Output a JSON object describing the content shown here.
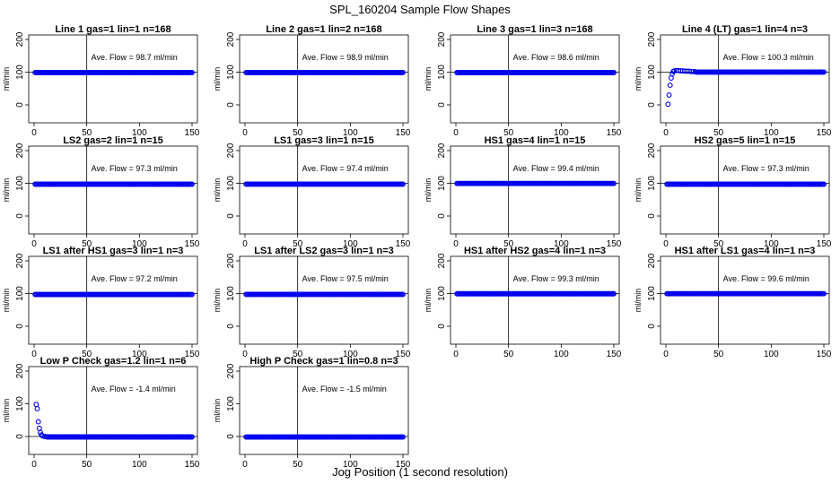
{
  "figure": {
    "title": "SPL_160204  Sample Flow Shapes",
    "xlabel": "Jog Position (1 second resolution)"
  },
  "colors": {
    "points": "#0000ee",
    "axes": "#000000",
    "background": "#ffffff"
  },
  "chart_data": [
    {
      "type": "scatter",
      "title": "Line 1 gas=1 lin=1 n=168",
      "ylabel": "ml/min",
      "annotation": "Ave. Flow =  98.7  ml/min",
      "xlim": [
        0,
        150
      ],
      "ylim": [
        0,
        200
      ],
      "xticks": [
        0,
        50,
        100,
        150
      ],
      "yticks": [
        0,
        100,
        200
      ],
      "vline": 50,
      "hline": 100,
      "series": [
        {
          "points": [
            [
              1,
              98.7
            ],
            [
              150,
              98.7
            ]
          ],
          "shape": "flat",
          "level": 98.7
        }
      ]
    },
    {
      "type": "scatter",
      "title": "Line 2 gas=1 lin=2 n=168",
      "ylabel": "ml/min",
      "annotation": "Ave. Flow =  98.9  ml/min",
      "xlim": [
        0,
        150
      ],
      "ylim": [
        0,
        200
      ],
      "xticks": [
        0,
        50,
        100,
        150
      ],
      "yticks": [
        0,
        100,
        200
      ],
      "vline": 50,
      "hline": 100,
      "series": [
        {
          "points": [
            [
              1,
              98.9
            ],
            [
              150,
              98.9
            ]
          ],
          "shape": "flat",
          "level": 98.9
        }
      ]
    },
    {
      "type": "scatter",
      "title": "Line 3 gas=1 lin=3 n=168",
      "ylabel": "ml/min",
      "annotation": "Ave. Flow =  98.6  ml/min",
      "xlim": [
        0,
        150
      ],
      "ylim": [
        0,
        200
      ],
      "xticks": [
        0,
        50,
        100,
        150
      ],
      "yticks": [
        0,
        100,
        200
      ],
      "vline": 50,
      "hline": 100,
      "series": [
        {
          "points": [
            [
              1,
              98.6
            ],
            [
              150,
              98.6
            ]
          ],
          "shape": "flat",
          "level": 98.6
        }
      ]
    },
    {
      "type": "scatter",
      "title": "Line 4 (LT) gas=1 lin=4 n=3",
      "ylabel": "ml/min",
      "annotation": "Ave. Flow =  100.3  ml/min",
      "xlim": [
        0,
        150
      ],
      "ylim": [
        0,
        200
      ],
      "xticks": [
        0,
        50,
        100,
        150
      ],
      "yticks": [
        0,
        100,
        200
      ],
      "vline": 50,
      "hline": 100,
      "series": [
        {
          "points": [
            [
              2,
              2
            ],
            [
              3,
              30
            ],
            [
              4,
              60
            ],
            [
              5,
              82
            ],
            [
              6,
              95
            ],
            [
              7,
              102
            ],
            [
              8,
              104
            ],
            [
              10,
              105
            ],
            [
              12,
              105
            ],
            [
              14,
              104
            ],
            [
              16,
              104
            ],
            [
              18,
              103
            ],
            [
              20,
              103
            ],
            [
              22,
              103
            ],
            [
              24,
              102
            ],
            [
              26,
              102
            ],
            [
              28,
              101
            ],
            [
              150,
              100.3
            ]
          ],
          "shape": "rise",
          "level": 100.3
        }
      ]
    },
    {
      "type": "scatter",
      "title": "LS2 gas=2 lin=1 n=15",
      "ylabel": "ml/min",
      "annotation": "Ave. Flow =  97.3  ml/min",
      "xlim": [
        0,
        150
      ],
      "ylim": [
        0,
        200
      ],
      "xticks": [
        0,
        50,
        100,
        150
      ],
      "yticks": [
        0,
        100,
        200
      ],
      "vline": 50,
      "hline": 100,
      "series": [
        {
          "points": [
            [
              1,
              97.3
            ],
            [
              150,
              97.3
            ]
          ],
          "shape": "flat",
          "level": 97.3
        }
      ]
    },
    {
      "type": "scatter",
      "title": "LS1 gas=3 lin=1 n=15",
      "ylabel": "ml/min",
      "annotation": "Ave. Flow =  97.4  ml/min",
      "xlim": [
        0,
        150
      ],
      "ylim": [
        0,
        200
      ],
      "xticks": [
        0,
        50,
        100,
        150
      ],
      "yticks": [
        0,
        100,
        200
      ],
      "vline": 50,
      "hline": 100,
      "series": [
        {
          "points": [
            [
              1,
              97.4
            ],
            [
              150,
              97.4
            ]
          ],
          "shape": "flat",
          "level": 97.4
        }
      ]
    },
    {
      "type": "scatter",
      "title": "HS1 gas=4 lin=1 n=15",
      "ylabel": "ml/min",
      "annotation": "Ave. Flow =  99.4  ml/min",
      "xlim": [
        0,
        150
      ],
      "ylim": [
        0,
        200
      ],
      "xticks": [
        0,
        50,
        100,
        150
      ],
      "yticks": [
        0,
        100,
        200
      ],
      "vline": 50,
      "hline": 100,
      "series": [
        {
          "points": [
            [
              1,
              99.4
            ],
            [
              150,
              99.4
            ]
          ],
          "shape": "flat",
          "level": 99.4
        }
      ]
    },
    {
      "type": "scatter",
      "title": "HS2 gas=5 lin=1 n=15",
      "ylabel": "ml/min",
      "annotation": "Ave. Flow =  97.3  ml/min",
      "xlim": [
        0,
        150
      ],
      "ylim": [
        0,
        200
      ],
      "xticks": [
        0,
        50,
        100,
        150
      ],
      "yticks": [
        0,
        100,
        200
      ],
      "vline": 50,
      "hline": 100,
      "series": [
        {
          "points": [
            [
              1,
              97.3
            ],
            [
              150,
              97.3
            ]
          ],
          "shape": "flat",
          "level": 97.3
        }
      ]
    },
    {
      "type": "scatter",
      "title": "LS1 after HS1 gas=3 lin=1 n=3",
      "ylabel": "ml/min",
      "annotation": "Ave. Flow =  97.2  ml/min",
      "xlim": [
        0,
        150
      ],
      "ylim": [
        0,
        200
      ],
      "xticks": [
        0,
        50,
        100,
        150
      ],
      "yticks": [
        0,
        100,
        200
      ],
      "vline": 50,
      "hline": 100,
      "series": [
        {
          "points": [
            [
              1,
              97.2
            ],
            [
              150,
              97.2
            ]
          ],
          "shape": "flat",
          "level": 97.2
        }
      ]
    },
    {
      "type": "scatter",
      "title": "LS1 after LS2 gas=3 lin=1 n=3",
      "ylabel": "ml/min",
      "annotation": "Ave. Flow =  97.5  ml/min",
      "xlim": [
        0,
        150
      ],
      "ylim": [
        0,
        200
      ],
      "xticks": [
        0,
        50,
        100,
        150
      ],
      "yticks": [
        0,
        100,
        200
      ],
      "vline": 50,
      "hline": 100,
      "series": [
        {
          "points": [
            [
              1,
              97.5
            ],
            [
              150,
              97.5
            ]
          ],
          "shape": "flat",
          "level": 97.5
        }
      ]
    },
    {
      "type": "scatter",
      "title": "HS1 after HS2 gas=4 lin=1 n=3",
      "ylabel": "ml/min",
      "annotation": "Ave. Flow =  99.3  ml/min",
      "xlim": [
        0,
        150
      ],
      "ylim": [
        0,
        200
      ],
      "xticks": [
        0,
        50,
        100,
        150
      ],
      "yticks": [
        0,
        100,
        200
      ],
      "vline": 50,
      "hline": 100,
      "series": [
        {
          "points": [
            [
              1,
              99.3
            ],
            [
              150,
              99.3
            ]
          ],
          "shape": "flat",
          "level": 99.3
        }
      ]
    },
    {
      "type": "scatter",
      "title": "HS1 after LS1 gas=4 lin=1 n=3",
      "ylabel": "ml/min",
      "annotation": "Ave. Flow =  99.6  ml/min",
      "xlim": [
        0,
        150
      ],
      "ylim": [
        0,
        200
      ],
      "xticks": [
        0,
        50,
        100,
        150
      ],
      "yticks": [
        0,
        100,
        200
      ],
      "vline": 50,
      "hline": 100,
      "series": [
        {
          "points": [
            [
              1,
              99.6
            ],
            [
              150,
              99.6
            ]
          ],
          "shape": "flat",
          "level": 99.6
        }
      ]
    },
    {
      "type": "scatter",
      "title": "Low P Check gas=1.2 lin=1 n=6",
      "ylabel": "ml/min",
      "annotation": "Ave. Flow =  -1.4  ml/min",
      "xlim": [
        0,
        150
      ],
      "ylim": [
        0,
        200
      ],
      "xticks": [
        0,
        50,
        100,
        150
      ],
      "yticks": [
        0,
        100,
        200
      ],
      "vline": 50,
      "hline": 0,
      "series": [
        {
          "points": [
            [
              2,
              98
            ],
            [
              3,
              85
            ],
            [
              4,
              45
            ],
            [
              5,
              25
            ],
            [
              6,
              12
            ],
            [
              7,
              5
            ],
            [
              8,
              2
            ],
            [
              10,
              0
            ],
            [
              12,
              -1
            ],
            [
              150,
              -1.4
            ]
          ],
          "shape": "decay",
          "level": -1.4
        }
      ]
    },
    {
      "type": "scatter",
      "title": "High P Check gas=1 lin=0.8 n=3",
      "ylabel": "ml/min",
      "annotation": "Ave. Flow =  -1.5  ml/min",
      "xlim": [
        0,
        150
      ],
      "ylim": [
        0,
        200
      ],
      "xticks": [
        0,
        50,
        100,
        150
      ],
      "yticks": [
        0,
        100,
        200
      ],
      "vline": 50,
      "hline": 0,
      "series": [
        {
          "points": [
            [
              1,
              -1.5
            ],
            [
              150,
              -1.5
            ]
          ],
          "shape": "flat",
          "level": -1.5
        }
      ]
    }
  ]
}
